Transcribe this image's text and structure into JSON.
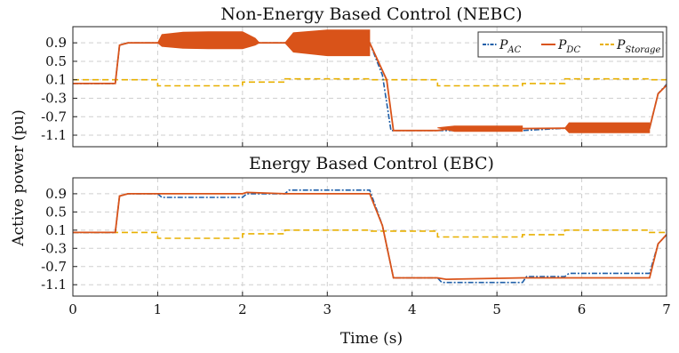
{
  "chart_data": [
    {
      "type": "line",
      "title": "Non-Energy Based Control (NEBC)",
      "xlim": [
        0,
        7
      ],
      "ylim": [
        -1.35,
        1.25
      ],
      "yticks": [
        0.9,
        0.5,
        0.1,
        -0.3,
        -0.7,
        -1.1
      ],
      "grid": true,
      "legend": "top-right",
      "colors": {
        "P_AC": "#1f5fa8",
        "P_DC": "#d95319",
        "P_Storage": "#e8b000"
      },
      "series": [
        {
          "name": "P_AC",
          "label_base": "P",
          "label_sub": "AC",
          "x": [
            0,
            0.5,
            0.55,
            0.65,
            3.5,
            3.65,
            3.75,
            4.3,
            5.3,
            5.8,
            6.8,
            6.9,
            7.0
          ],
          "y": [
            0.02,
            0.02,
            0.85,
            0.9,
            0.9,
            0.2,
            -1.0,
            -1.0,
            -1.0,
            -0.95,
            -0.95,
            -0.2,
            0.0
          ]
        },
        {
          "name": "P_DC",
          "label_base": "P",
          "label_sub": "DC",
          "x": [
            0,
            0.5,
            0.55,
            0.65,
            1.0,
            3.5,
            3.7,
            3.78,
            4.3,
            4.4,
            5.8,
            6.8,
            6.9,
            7.0
          ],
          "y": [
            0.02,
            0.02,
            0.85,
            0.9,
            0.9,
            0.9,
            0.1,
            -1.0,
            -1.0,
            -0.97,
            -0.95,
            -0.95,
            -0.2,
            -0.02
          ]
        },
        {
          "name": "P_Storage",
          "label_base": "P",
          "label_sub": "Storage",
          "x": [
            0,
            1.0,
            1.0,
            2.0,
            2.0,
            2.5,
            2.5,
            3.5,
            3.5,
            4.3,
            4.3,
            5.3,
            5.3,
            5.8,
            5.8,
            6.8,
            6.8,
            7.0
          ],
          "y": [
            0.1,
            0.1,
            -0.03,
            -0.03,
            0.05,
            0.05,
            0.12,
            0.12,
            0.1,
            0.1,
            -0.03,
            -0.03,
            0.02,
            0.02,
            0.12,
            0.12,
            0.1,
            0.1
          ]
        }
      ],
      "oscillation_bands": [
        {
          "series": "P_DC",
          "x": [
            1.0,
            1.05,
            1.3,
            1.6,
            2.0,
            2.15,
            2.2
          ],
          "upper": [
            0.9,
            1.08,
            1.13,
            1.14,
            1.14,
            1.0,
            0.9
          ],
          "lower": [
            0.9,
            0.82,
            0.78,
            0.77,
            0.77,
            0.85,
            0.9
          ]
        },
        {
          "series": "P_DC",
          "x": [
            2.5,
            2.6,
            3.0,
            3.5
          ],
          "upper": [
            0.9,
            1.12,
            1.18,
            1.18
          ],
          "lower": [
            0.9,
            0.7,
            0.62,
            0.62
          ]
        },
        {
          "series": "P_DC",
          "x": [
            4.3,
            4.5,
            5.3
          ],
          "upper": [
            -0.94,
            -0.9,
            -0.9
          ],
          "lower": [
            -0.94,
            -1.02,
            -1.02
          ]
        },
        {
          "series": "P_DC",
          "x": [
            5.8,
            5.85,
            6.8
          ],
          "upper": [
            -0.95,
            -0.83,
            -0.83
          ],
          "lower": [
            -0.95,
            -1.05,
            -1.05
          ]
        }
      ]
    },
    {
      "type": "line",
      "title": "Energy Based Control (EBC)",
      "xlim": [
        0,
        7
      ],
      "ylim": [
        -1.35,
        1.25
      ],
      "yticks": [
        0.9,
        0.5,
        0.1,
        -0.3,
        -0.7,
        -1.1
      ],
      "grid": true,
      "series": [
        {
          "name": "P_AC",
          "x": [
            0,
            0.5,
            0.55,
            0.65,
            1.0,
            1.05,
            2.0,
            2.05,
            2.5,
            2.55,
            3.5,
            3.65,
            3.78,
            4.3,
            4.35,
            5.3,
            5.35,
            5.8,
            5.85,
            6.8,
            6.9,
            7.0
          ],
          "y": [
            0.05,
            0.05,
            0.85,
            0.9,
            0.9,
            0.82,
            0.82,
            0.9,
            0.9,
            0.98,
            0.98,
            0.2,
            -0.95,
            -0.95,
            -1.05,
            -1.05,
            -0.92,
            -0.92,
            -0.85,
            -0.85,
            -0.2,
            0.0
          ]
        },
        {
          "name": "P_DC",
          "x": [
            0,
            0.5,
            0.55,
            0.65,
            1.0,
            2.0,
            2.05,
            2.5,
            2.55,
            3.5,
            3.65,
            3.78,
            4.3,
            4.4,
            5.3,
            5.8,
            6.8,
            6.9,
            7.0
          ],
          "y": [
            0.05,
            0.05,
            0.85,
            0.9,
            0.9,
            0.9,
            0.93,
            0.9,
            0.9,
            0.9,
            0.2,
            -0.95,
            -0.95,
            -0.98,
            -0.95,
            -0.95,
            -0.95,
            -0.2,
            0.0
          ]
        },
        {
          "name": "P_Storage",
          "x": [
            0,
            1.0,
            1.0,
            2.0,
            2.0,
            2.5,
            2.5,
            3.5,
            3.5,
            4.3,
            4.3,
            5.3,
            5.3,
            5.8,
            5.8,
            6.8,
            6.8,
            7.0
          ],
          "y": [
            0.05,
            0.05,
            -0.08,
            -0.08,
            0.02,
            0.02,
            0.1,
            0.1,
            0.08,
            0.08,
            -0.05,
            -0.05,
            0.0,
            0.0,
            0.1,
            0.1,
            0.05,
            0.05
          ]
        }
      ]
    }
  ],
  "shared": {
    "ylabel": "Active power (pu)",
    "xlabel": "Time (s)",
    "xticks": [
      "0",
      "1",
      "2",
      "3",
      "4",
      "5",
      "6",
      "7"
    ]
  }
}
